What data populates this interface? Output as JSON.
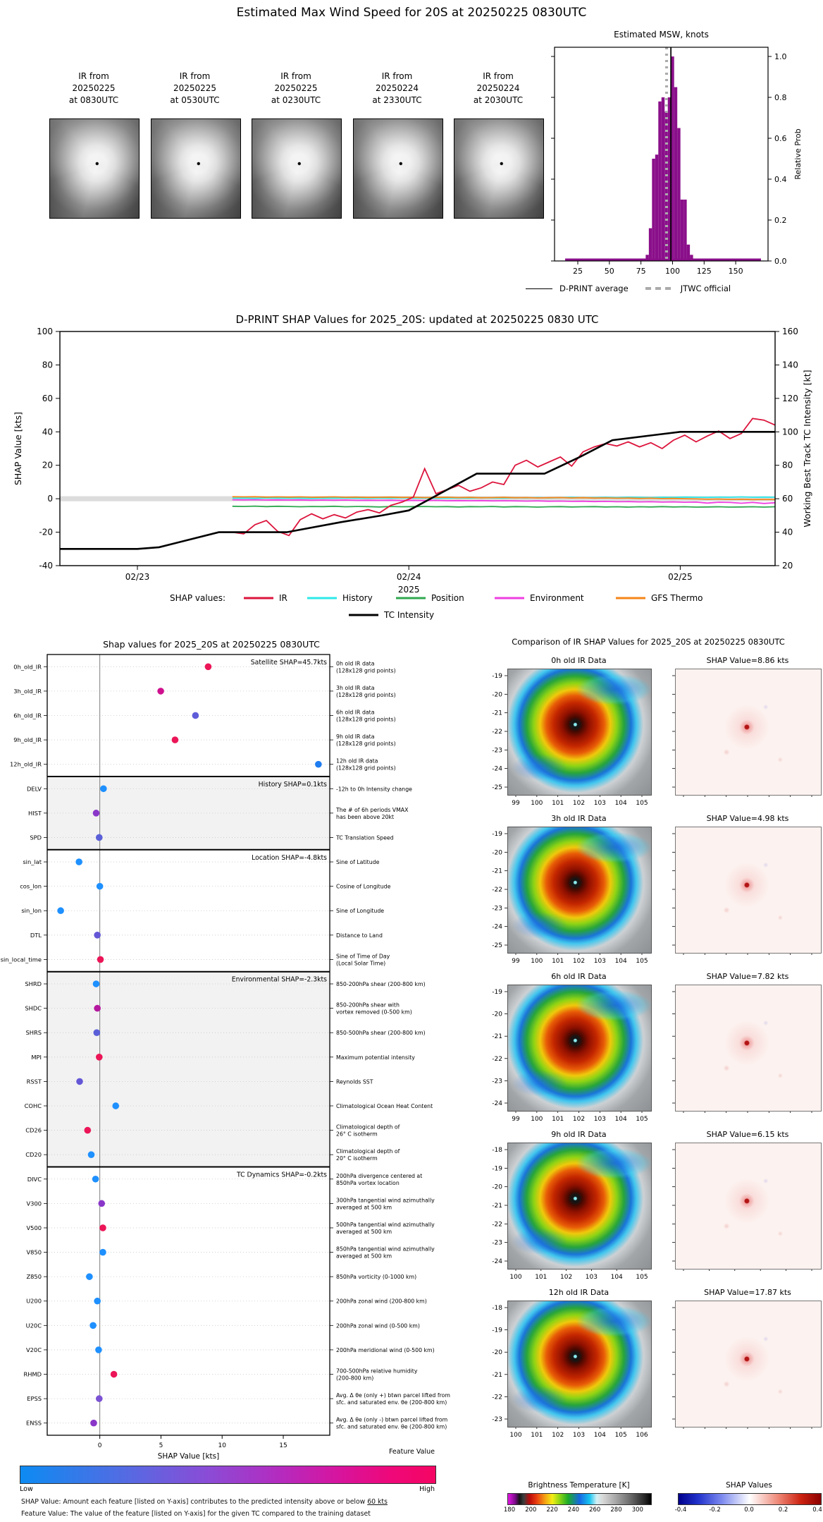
{
  "top": {
    "title": "Estimated Max Wind Speed for 20S at 20250225 0830UTC",
    "thumbnails": [
      {
        "caption_lines": [
          "IR from",
          "20250225",
          "at 0830UTC"
        ]
      },
      {
        "caption_lines": [
          "IR from",
          "20250225",
          "at 0530UTC"
        ]
      },
      {
        "caption_lines": [
          "IR from",
          "20250225",
          "at 0230UTC"
        ]
      },
      {
        "caption_lines": [
          "IR from",
          "20250224",
          "at 2330UTC"
        ]
      },
      {
        "caption_lines": [
          "IR from",
          "20250224",
          "at 2030UTC"
        ]
      }
    ]
  },
  "chart_data": [
    {
      "type": "bar",
      "title": "Estimated MSW, knots",
      "ylabel": "Relative Prob",
      "xticks": [
        25,
        50,
        75,
        100,
        125,
        150
      ],
      "yticks": [
        "0.0",
        "0.2",
        "0.4",
        "0.6",
        "0.8",
        "1.0"
      ],
      "xlim": [
        6.6,
        175.6
      ],
      "ylim": [
        0,
        1.045
      ],
      "bin_width": 2.5,
      "bin_centers": [
        80,
        82.5,
        85,
        87.5,
        90,
        92.5,
        95,
        97.5,
        100,
        102.5,
        105,
        107.5,
        110,
        112.5,
        115
      ],
      "bin_heights": [
        0.03,
        0.16,
        0.5,
        0.52,
        0.78,
        0.8,
        0.73,
        0.8,
        1.0,
        0.85,
        0.65,
        0.3,
        0.3,
        0.08,
        0.03
      ],
      "baseline_strip": {
        "from": 15,
        "to": 170,
        "height": 0.012
      },
      "dprint_average": 98.7,
      "jtwc_official": 95.3,
      "bar_color": "#8a0f8a",
      "legend": [
        {
          "label": "D-PRINT average",
          "style": "solid-black"
        },
        {
          "label": "JTWC official",
          "style": "dashed-gray"
        }
      ]
    },
    {
      "type": "line",
      "title": "D-PRINT SHAP Values for 2025_20S: updated at 20250225 0830 UTC",
      "ylabel_left": "SHAP Value [kts]",
      "ylabel_right": "Working Best Track TC Intensity [kt]",
      "yticks_left": [
        100,
        80,
        60,
        40,
        20,
        0,
        -20,
        -40
      ],
      "yticks_right": [
        160,
        140,
        120,
        100,
        80,
        60,
        40,
        20
      ],
      "xticks": [
        "02/23",
        "02/24",
        "02/25"
      ],
      "xsub": "2025",
      "legend_label": "SHAP values:",
      "zero_band": [
        -1.5,
        1.5
      ],
      "x_start": 0.35,
      "x_step": 0.0416667,
      "series": [
        {
          "name": "IR",
          "color": "#dc143c",
          "values": [
            -20,
            -21,
            -15.5,
            -13,
            -19.5,
            -22,
            -12.5,
            -9,
            -12,
            -9.5,
            -11.5,
            -8,
            -6.5,
            -8.5,
            -4,
            -2,
            1,
            18,
            3,
            5.5,
            8,
            4.5,
            6.5,
            10,
            8.5,
            20,
            23,
            19,
            22,
            25,
            19.5,
            28,
            31,
            33,
            31.5,
            34,
            31,
            33.5,
            30,
            35,
            38,
            34,
            37.5,
            40.5,
            36,
            39,
            48,
            47,
            44
          ]
        },
        {
          "name": "History",
          "color": "#2ee8e8",
          "values": [
            0.3,
            0.4,
            0.2,
            0.5,
            0.3,
            0.4,
            0.3,
            0.2,
            0.4,
            0.3,
            0.5,
            0.4,
            0.3,
            0.5,
            0.4,
            0.6,
            0.4,
            0.5,
            0.3,
            0.4,
            0.5,
            0.4,
            0.6,
            0.5,
            0.4,
            0.6,
            0.5,
            0.7,
            0.5,
            0.6,
            0.8,
            0.6,
            0.7,
            0.8,
            0.7,
            0.9,
            0.8,
            0.7,
            0.9,
            0.8,
            1.0,
            0.9,
            0.8,
            1.0,
            0.9,
            1.1,
            0.9,
            1.0,
            0.9
          ]
        },
        {
          "name": "Position",
          "color": "#2fa84f",
          "values": [
            -4.5,
            -4.6,
            -4.4,
            -4.7,
            -4.5,
            -4.6,
            -4.8,
            -4.6,
            -4.7,
            -4.5,
            -4.8,
            -4.6,
            -4.7,
            -4.9,
            -4.6,
            -4.8,
            -4.7,
            -4.6,
            -4.8,
            -4.7,
            -4.9,
            -4.7,
            -4.8,
            -4.6,
            -4.9,
            -4.7,
            -4.8,
            -5.0,
            -4.8,
            -4.7,
            -4.9,
            -4.8,
            -4.7,
            -4.9,
            -4.8,
            -5.0,
            -4.8,
            -4.9,
            -4.7,
            -4.9,
            -4.8,
            -5.0,
            -4.9,
            -4.8,
            -5.0,
            -4.9,
            -4.8,
            -5.0,
            -4.8
          ]
        },
        {
          "name": "Environment",
          "color": "#ef3de0",
          "values": [
            -0.6,
            -0.7,
            -0.6,
            -0.8,
            -0.7,
            -0.8,
            -0.7,
            -0.9,
            -0.8,
            -0.9,
            -0.8,
            -1.0,
            -0.9,
            -1.0,
            -0.9,
            -1.1,
            -1.0,
            -1.1,
            -1.0,
            -1.2,
            -1.1,
            -1.2,
            -1.1,
            -1.3,
            -1.2,
            -1.3,
            -1.4,
            -1.3,
            -1.5,
            -1.4,
            -1.6,
            -1.5,
            -1.7,
            -1.6,
            -1.8,
            -1.7,
            -1.9,
            -1.8,
            -2.0,
            -1.9,
            -2.1,
            -2.0,
            -2.6,
            -2.1,
            -2.2,
            -2.7,
            -2.2,
            -2.8,
            -2.4
          ]
        },
        {
          "name": "GFS Thermo",
          "color": "#f58518",
          "values": [
            1.2,
            1.1,
            1.2,
            1.0,
            1.1,
            1.0,
            1.1,
            0.9,
            1.0,
            1.1,
            0.9,
            1.0,
            0.8,
            0.9,
            1.0,
            0.8,
            0.9,
            0.7,
            0.8,
            0.9,
            0.7,
            0.8,
            0.6,
            0.7,
            0.8,
            0.6,
            0.7,
            0.5,
            0.6,
            0.7,
            0.5,
            0.6,
            0.4,
            0.5,
            0.3,
            0.4,
            0.2,
            0.3,
            0.1,
            0.2,
            0.0,
            -0.1,
            -0.3,
            -0.2,
            -0.4,
            -0.3,
            -0.5,
            -0.4,
            -0.5
          ]
        }
      ],
      "intensity": {
        "name": "TC Intensity",
        "color": "#000000",
        "x": [
          -0.286,
          0,
          0.08,
          0.3,
          0.55,
          0.75,
          0.9,
          1.0,
          1.08,
          1.25,
          1.5,
          1.63,
          1.75,
          1.9,
          2.0,
          2.35
        ],
        "y": [
          30,
          30,
          31,
          40,
          40,
          46,
          50,
          53,
          60,
          75,
          75,
          85,
          95,
          98,
          100,
          100
        ]
      }
    },
    {
      "type": "scatter",
      "title": "Shap values for 2025_20S at 20250225 0830UTC",
      "xlabel": "SHAP Value [kts]",
      "xticks": [
        0,
        5,
        10,
        15
      ],
      "xlim": [
        -4.3,
        18.8
      ],
      "colorbar": {
        "title": "Feature Value",
        "low": "Low",
        "high": "High"
      },
      "footnote1_prefix": "SHAP Value: Amount each feature [listed on Y-axis] contributes to the predicted intensity above or below ",
      "footnote1_underlined": "60 kts",
      "footnote2": "Feature Value: The value of the feature [listed on Y-axis] for the given TC compared to the training dataset",
      "sections": [
        {
          "label": "Satellite SHAP=45.7kts",
          "start": 0,
          "end": 4,
          "shaded": false
        },
        {
          "label": "History SHAP=0.1kts",
          "start": 5,
          "end": 7,
          "shaded": true
        },
        {
          "label": "Location SHAP=-4.8kts",
          "start": 8,
          "end": 12,
          "shaded": false
        },
        {
          "label": "Environmental SHAP=-2.3kts",
          "start": 13,
          "end": 20,
          "shaded": true
        },
        {
          "label": "TC Dynamics SHAP=-0.2kts",
          "start": 21,
          "end": 31,
          "shaded": false
        }
      ],
      "rows": [
        {
          "name": "0h_old_IR",
          "value": 8.86,
          "color": "#ec1557",
          "desc": [
            "0h old IR data",
            "(128x128 grid points)"
          ]
        },
        {
          "name": "3h_old_IR",
          "value": 4.98,
          "color": "#cf108e",
          "desc": [
            "3h old IR data",
            "(128x128 grid points)"
          ]
        },
        {
          "name": "6h_old_IR",
          "value": 7.82,
          "color": "#5f5cd9",
          "desc": [
            "6h old IR data",
            "(128x128 grid points)"
          ]
        },
        {
          "name": "9h_old_IR",
          "value": 6.15,
          "color": "#ec1557",
          "desc": [
            "9h old IR data",
            "(128x128 grid points)"
          ]
        },
        {
          "name": "12h_old_IR",
          "value": 17.87,
          "color": "#1e7df0",
          "desc": [
            "12h old IR data",
            "(128x128 grid points)"
          ]
        },
        {
          "name": "DELV",
          "value": 0.3,
          "color": "#1e90ff",
          "desc": [
            "-12h to 0h Intensity change"
          ]
        },
        {
          "name": "HIST",
          "value": -0.3,
          "color": "#8936c9",
          "desc": [
            "The # of 6h periods VMAX",
            "has been above 20kt"
          ]
        },
        {
          "name": "SPD",
          "value": -0.05,
          "color": "#5a5fd8",
          "desc": [
            "TC Translation Speed"
          ]
        },
        {
          "name": "sin_lat",
          "value": -1.7,
          "color": "#1e90ff",
          "desc": [
            "Sine of Latitude"
          ]
        },
        {
          "name": "cos_lon",
          "value": 0.0,
          "color": "#1e90ff",
          "desc": [
            "Cosine of Longitude"
          ]
        },
        {
          "name": "sin_lon",
          "value": -3.2,
          "color": "#1e90ff",
          "desc": [
            "Sine of Longitude"
          ]
        },
        {
          "name": "DTL",
          "value": -0.2,
          "color": "#6457d6",
          "desc": [
            "Distance to Land"
          ]
        },
        {
          "name": "sin_local_time",
          "value": 0.05,
          "color": "#ec1557",
          "desc": [
            "Sine of Time of Day",
            "(Local Solar Time)"
          ]
        },
        {
          "name": "SHRD",
          "value": -0.3,
          "color": "#1e90ff",
          "desc": [
            "850-200hPa shear (200-800 km)"
          ]
        },
        {
          "name": "SHDC",
          "value": -0.2,
          "color": "#b5179e",
          "desc": [
            "850-200hPa shear with",
            "vortex removed (0-500 km)"
          ]
        },
        {
          "name": "SHRS",
          "value": -0.25,
          "color": "#5a5fd8",
          "desc": [
            "850-500hPa shear (200-800 km)"
          ]
        },
        {
          "name": "MPI",
          "value": -0.05,
          "color": "#ec1557",
          "desc": [
            "Maximum potential intensity"
          ]
        },
        {
          "name": "RSST",
          "value": -1.65,
          "color": "#6457d6",
          "desc": [
            "Reynolds SST"
          ]
        },
        {
          "name": "COHC",
          "value": 1.3,
          "color": "#1e90ff",
          "desc": [
            "Climatological Ocean Heat Content"
          ]
        },
        {
          "name": "CD26",
          "value": -1.0,
          "color": "#ec1557",
          "desc": [
            "Climatological depth of",
            "26° C isotherm"
          ]
        },
        {
          "name": "CD20",
          "value": -0.7,
          "color": "#1e90ff",
          "desc": [
            "Climatological depth of",
            "20° C isotherm"
          ]
        },
        {
          "name": "DIVC",
          "value": -0.35,
          "color": "#1e90ff",
          "desc": [
            "200hPa divergence centered at",
            "850hPa vortex location"
          ]
        },
        {
          "name": "V300",
          "value": 0.15,
          "color": "#8936c9",
          "desc": [
            "300hPa tangential wind azimuthally",
            "averaged at 500 km"
          ]
        },
        {
          "name": "V500",
          "value": 0.25,
          "color": "#ec1557",
          "desc": [
            "500hPa tangential wind azimuthally",
            "averaged at 500 km"
          ]
        },
        {
          "name": "V850",
          "value": 0.25,
          "color": "#1e90ff",
          "desc": [
            "850hPa tangential wind azimuthally",
            "averaged at 500 km"
          ]
        },
        {
          "name": "Z850",
          "value": -0.85,
          "color": "#1e90ff",
          "desc": [
            "850hPa vorticity (0-1000 km)"
          ]
        },
        {
          "name": "U200",
          "value": -0.2,
          "color": "#1e90ff",
          "desc": [
            "200hPa zonal wind (200-800 km)"
          ]
        },
        {
          "name": "U20C",
          "value": -0.55,
          "color": "#1e90ff",
          "desc": [
            "200hPa zonal wind (0-500 km)"
          ]
        },
        {
          "name": "V20C",
          "value": -0.1,
          "color": "#1e90ff",
          "desc": [
            "200hPa meridional wind (0-500 km)"
          ]
        },
        {
          "name": "RHMD",
          "value": 1.15,
          "color": "#ec1557",
          "desc": [
            "700-500hPa relative humidity",
            "(200-800 km)"
          ]
        },
        {
          "name": "EPSS",
          "value": -0.05,
          "color": "#7b52d4",
          "desc": [
            "Avg. Δ θe (only +) btwn parcel lifted from",
            "sfc. and saturated env. θe (200-800 km)"
          ]
        },
        {
          "name": "ENSS",
          "value": -0.5,
          "color": "#8936c9",
          "desc": [
            "Avg. Δ θe (only -) btwn parcel lifted from",
            "sfc. and saturated env. θe (200-800 km)"
          ]
        }
      ]
    }
  ],
  "ir_comparison": {
    "title": "Comparison of IR SHAP Values for 2025_20S at 20250225 0830UTC",
    "rows": [
      {
        "ir_title": "0h old IR Data",
        "shap_title": "SHAP Value=8.86 kts",
        "lat": [
          -19,
          -20,
          -21,
          -22,
          -23,
          -24,
          -25
        ],
        "lon": [
          99,
          100,
          101,
          102,
          103,
          104,
          105
        ]
      },
      {
        "ir_title": "3h old IR Data",
        "shap_title": "SHAP Value=4.98 kts",
        "lat": [
          -19,
          -20,
          -21,
          -22,
          -23,
          -24,
          -25
        ],
        "lon": [
          99,
          100,
          101,
          102,
          103,
          104,
          105
        ]
      },
      {
        "ir_title": "6h old IR Data",
        "shap_title": "SHAP Value=7.82 kts",
        "lat": [
          -19,
          -20,
          -21,
          -22,
          -23,
          -24
        ],
        "lon": [
          99,
          100,
          101,
          102,
          103,
          104,
          105
        ]
      },
      {
        "ir_title": "9h old IR Data",
        "shap_title": "SHAP Value=6.15 kts",
        "lat": [
          -18,
          -19,
          -20,
          -21,
          -22,
          -23,
          -24
        ],
        "lon": [
          100,
          101,
          102,
          103,
          104,
          105
        ]
      },
      {
        "ir_title": "12h old IR Data",
        "shap_title": "SHAP Value=17.87 kts",
        "lat": [
          -18,
          -19,
          -20,
          -21,
          -22,
          -23
        ],
        "lon": [
          100,
          101,
          102,
          103,
          104,
          105,
          106
        ]
      }
    ],
    "bt_colorbar": {
      "title": "Brightness Temperature [K]",
      "ticks": [
        180,
        200,
        220,
        240,
        260,
        280,
        300
      ],
      "range": [
        178,
        312
      ]
    },
    "shap_colorbar": {
      "title": "SHAP Values",
      "ticks": [
        "-0.4",
        "-0.2",
        "0.0",
        "0.2",
        "0.4"
      ]
    }
  }
}
